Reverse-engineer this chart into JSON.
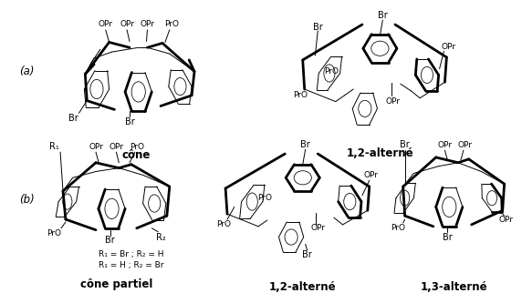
{
  "bg_color": "#ffffff",
  "label_a": "(a)",
  "label_b": "(b)",
  "cone_label": "cône",
  "alt12_label_a": "1,2-alterné",
  "cone_partial_label": "cône partiel",
  "alt12_label_b": "1,2-alterné",
  "alt13_label": "1,3-alterné",
  "r1_eq": "R₁ = Br ; R₂ = H",
  "r2_eq": "R₁ = H ; R₂ = Br",
  "fig_width": 5.72,
  "fig_height": 3.22,
  "dpi": 100
}
